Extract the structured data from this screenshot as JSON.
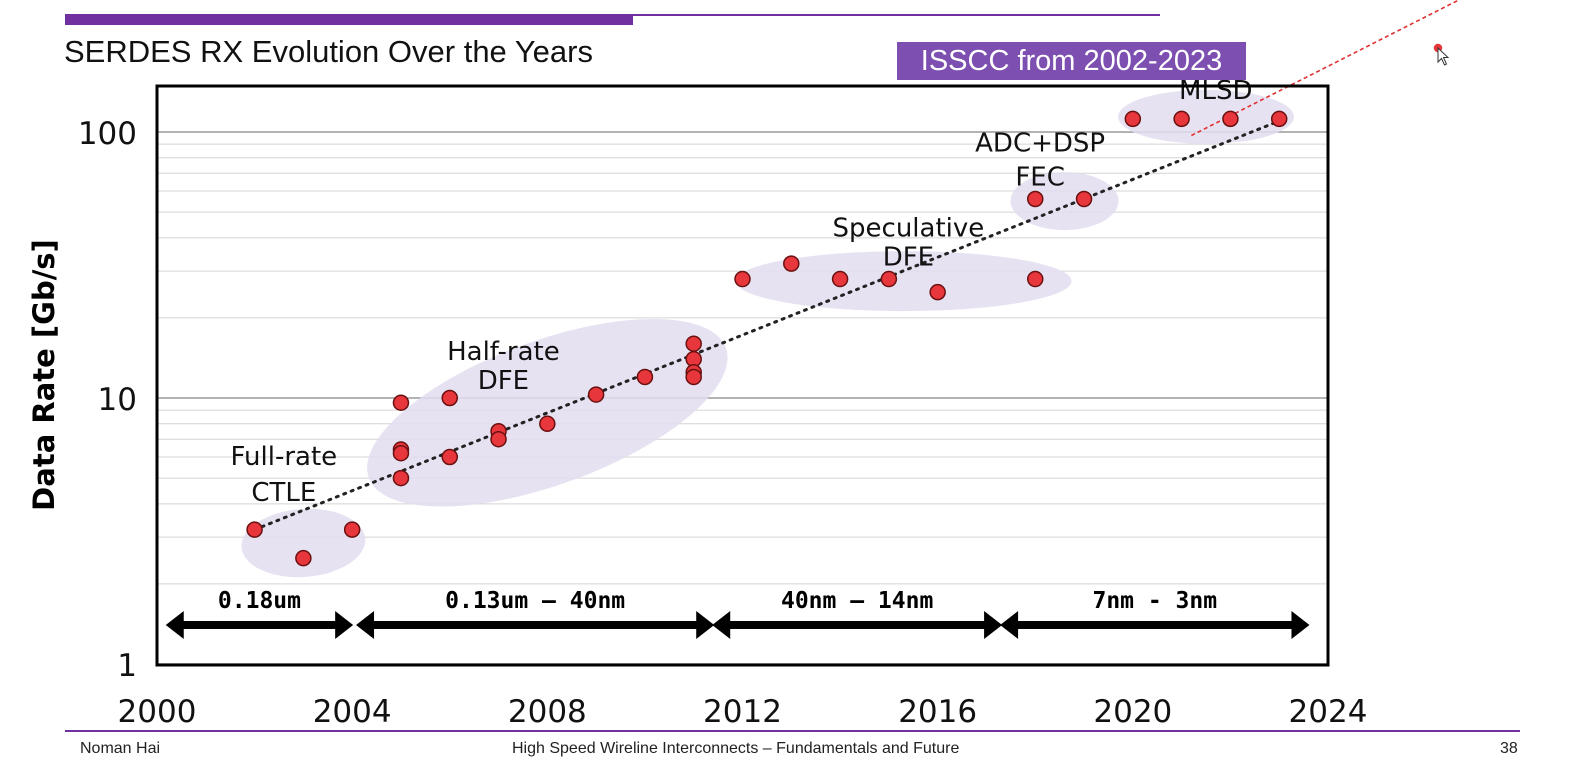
{
  "slide": {
    "title": "SERDES RX Evolution Over the Years",
    "badge": "ISSCC from 2002-2023",
    "footer_left": "Noman Hai",
    "footer_center": "High Speed Wireline Interconnects – Fundamentals and Future",
    "page_number": "38"
  },
  "colors": {
    "accent": "#7030a0",
    "badge_bg": "#7d4fb0",
    "point_fill": "#e8373c",
    "cluster_fill": "#e3ddf0"
  },
  "chart_data": {
    "type": "scatter",
    "title": "SERDES RX Evolution Over the Years",
    "xlabel": "",
    "ylabel": "Data Rate [Gb/s]",
    "y_scale": "log",
    "xlim": [
      2000,
      2024
    ],
    "ylim": [
      1,
      150
    ],
    "x_ticks": [
      2000,
      2004,
      2008,
      2012,
      2016,
      2020,
      2024
    ],
    "y_ticks": [
      1,
      10,
      100
    ],
    "grid": true,
    "points": [
      {
        "x": 2002,
        "y": 3.2
      },
      {
        "x": 2003,
        "y": 2.5
      },
      {
        "x": 2004,
        "y": 3.2
      },
      {
        "x": 2005,
        "y": 9.6
      },
      {
        "x": 2005,
        "y": 6.4
      },
      {
        "x": 2005,
        "y": 6.2
      },
      {
        "x": 2005,
        "y": 5.0
      },
      {
        "x": 2006,
        "y": 10.0
      },
      {
        "x": 2006,
        "y": 6.0
      },
      {
        "x": 2007,
        "y": 7.5
      },
      {
        "x": 2007,
        "y": 7.0
      },
      {
        "x": 2008,
        "y": 8.0
      },
      {
        "x": 2009,
        "y": 10.3
      },
      {
        "x": 2010,
        "y": 12.0
      },
      {
        "x": 2011,
        "y": 16.0
      },
      {
        "x": 2011,
        "y": 14.0
      },
      {
        "x": 2011,
        "y": 12.5
      },
      {
        "x": 2011,
        "y": 12.0
      },
      {
        "x": 2012,
        "y": 28.0
      },
      {
        "x": 2013,
        "y": 32.0
      },
      {
        "x": 2014,
        "y": 28.0
      },
      {
        "x": 2015,
        "y": 28.0
      },
      {
        "x": 2016,
        "y": 25.0
      },
      {
        "x": 2018,
        "y": 28.0
      },
      {
        "x": 2018,
        "y": 56.0
      },
      {
        "x": 2019,
        "y": 56.0
      },
      {
        "x": 2020,
        "y": 112.0
      },
      {
        "x": 2021,
        "y": 112.0
      },
      {
        "x": 2022,
        "y": 112.0
      },
      {
        "x": 2023,
        "y": 112.0
      }
    ],
    "trendline": {
      "style": "dotted",
      "from": {
        "x": 2002,
        "y": 3.2
      },
      "to": {
        "x": 2023,
        "y": 110
      }
    },
    "projection": {
      "style": "dashed",
      "from": {
        "x": 2021.2,
        "y": 97
      },
      "to": {
        "x": 2027.7,
        "y": 390
      }
    },
    "clusters": [
      {
        "label": [
          "Full-rate",
          "CTLE"
        ],
        "cx": 2003,
        "cy": 2.85,
        "label_x": 2002.6,
        "label_y": [
          5.6,
          4.1
        ]
      },
      {
        "label": [
          "Half-rate",
          "DFE"
        ],
        "cx": 2008,
        "cy": 8.8,
        "label_x": 2007.1,
        "label_y": [
          13.9,
          10.8
        ]
      },
      {
        "label": [
          "Speculative",
          "DFE"
        ],
        "cx": 2015.3,
        "cy": 27.5,
        "label_x": 2015.4,
        "label_y": [
          40.5,
          31.5
        ]
      },
      {
        "label": [
          "ADC+DSP",
          "FEC"
        ],
        "cx": 2018.6,
        "cy": 55.0,
        "label_x": 2018.1,
        "label_y": [
          84.5,
          63
        ]
      },
      {
        "label": [
          "MLSD"
        ],
        "cx": 2021.5,
        "cy": 114.0,
        "label_x": 2021.7,
        "label_y": [
          133
        ]
      }
    ],
    "process_nodes": [
      {
        "label": "0.18um",
        "from": 2000.2,
        "to": 2004.0
      },
      {
        "label": "0.13um – 40nm",
        "from": 2004.1,
        "to": 2011.4
      },
      {
        "label": "40nm – 14nm",
        "from": 2011.4,
        "to": 2017.3
      },
      {
        "label": "7nm - 3nm",
        "from": 2017.3,
        "to": 2023.6
      }
    ]
  }
}
